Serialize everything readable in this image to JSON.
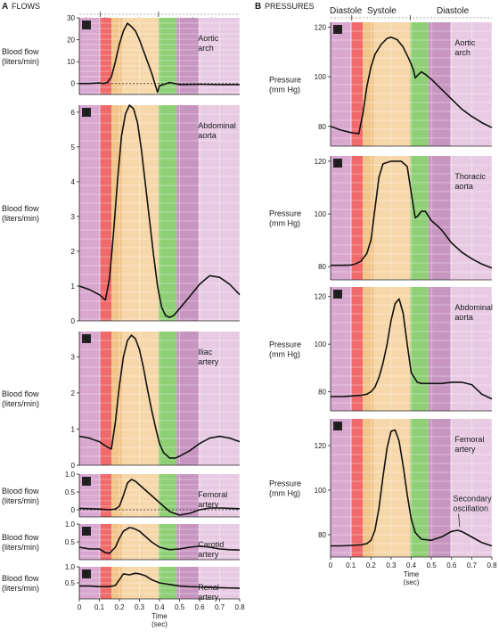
{
  "colors": {
    "phase_bands": [
      "#d9a8d1",
      "#ef6a6a",
      "#f1c48a",
      "#f6d7a9",
      "#8fcf75",
      "#c796c0",
      "#e8cbe3"
    ],
    "curve": "#111111",
    "grid": "#ffffff"
  },
  "panel_headers": {
    "flows": {
      "letter": "A",
      "title": "FLOWS"
    },
    "pressures": {
      "letter": "B",
      "title": "PRESSURES"
    }
  },
  "phase_labels": {
    "diastole_left": "Diastole",
    "systole": "Systole",
    "diastole_right": "Diastole"
  },
  "chart_data": [
    {
      "type": "line",
      "column": "flows",
      "number": "1",
      "label": "Aortic arch",
      "ylabel": "Blood flow (liters/min)",
      "xlim": [
        0,
        0.8
      ],
      "ylim": [
        -5,
        30
      ],
      "yticks": [
        0,
        10,
        20,
        30
      ],
      "zero_dashed": true,
      "series": [
        {
          "x": [
            0,
            0.05,
            0.1,
            0.12,
            0.14,
            0.16,
            0.18,
            0.2,
            0.22,
            0.24,
            0.26,
            0.28,
            0.3,
            0.32,
            0.34,
            0.36,
            0.38,
            0.39,
            0.4,
            0.42,
            0.45,
            0.5,
            0.6,
            0.7,
            0.8
          ],
          "y": [
            0,
            0,
            0.3,
            0,
            0.5,
            3,
            10,
            18,
            24,
            27.5,
            26,
            24,
            20,
            15,
            10,
            5,
            -1,
            -4,
            -1,
            -0.5,
            0.5,
            -0.5,
            -0.3,
            -0.5,
            -0.5
          ]
        }
      ]
    },
    {
      "type": "line",
      "column": "flows",
      "number": "2",
      "label": "Abdominal aorta",
      "ylabel": "Blood flow (liters/min)",
      "xlim": [
        0,
        0.8
      ],
      "ylim": [
        0,
        6.2
      ],
      "yticks": [
        0,
        1,
        2,
        3,
        4,
        5,
        6
      ],
      "series": [
        {
          "x": [
            0,
            0.05,
            0.1,
            0.13,
            0.15,
            0.17,
            0.19,
            0.21,
            0.23,
            0.25,
            0.27,
            0.29,
            0.31,
            0.33,
            0.35,
            0.37,
            0.39,
            0.41,
            0.43,
            0.45,
            0.47,
            0.5,
            0.55,
            0.6,
            0.65,
            0.7,
            0.75,
            0.8
          ],
          "y": [
            1.0,
            0.9,
            0.75,
            0.6,
            1.2,
            2.5,
            4.0,
            5.3,
            5.95,
            6.2,
            6.1,
            5.7,
            4.9,
            3.9,
            2.9,
            1.9,
            1.0,
            0.4,
            0.15,
            0.1,
            0.15,
            0.35,
            0.7,
            1.05,
            1.3,
            1.25,
            1.05,
            0.75
          ]
        }
      ]
    },
    {
      "type": "line",
      "column": "flows",
      "number": "3",
      "label": "Iliac artery",
      "ylabel": "Blood flow (liters/min)",
      "xlim": [
        0,
        0.8
      ],
      "ylim": [
        0,
        3.7
      ],
      "yticks": [
        0,
        1,
        2,
        3
      ],
      "series": [
        {
          "x": [
            0,
            0.05,
            0.1,
            0.14,
            0.16,
            0.18,
            0.2,
            0.22,
            0.24,
            0.26,
            0.28,
            0.3,
            0.32,
            0.34,
            0.36,
            0.38,
            0.4,
            0.42,
            0.45,
            0.48,
            0.5,
            0.55,
            0.6,
            0.65,
            0.7,
            0.75,
            0.8
          ],
          "y": [
            0.8,
            0.75,
            0.65,
            0.5,
            0.45,
            1.2,
            2.2,
            3.0,
            3.45,
            3.6,
            3.5,
            3.2,
            2.7,
            2.1,
            1.55,
            1.05,
            0.6,
            0.35,
            0.2,
            0.2,
            0.25,
            0.4,
            0.6,
            0.75,
            0.8,
            0.75,
            0.65
          ]
        }
      ]
    },
    {
      "type": "line",
      "column": "flows",
      "number": "4",
      "label": "Femoral artery",
      "ylabel": "Blood flow (liters/min)",
      "xlim": [
        0,
        0.8
      ],
      "ylim": [
        -0.2,
        1.0
      ],
      "yticks": [
        0,
        0.5,
        1.0
      ],
      "ytick_labels": [
        "0",
        "0.5",
        "1.0"
      ],
      "zero_dashed": true,
      "series": [
        {
          "x": [
            0,
            0.05,
            0.1,
            0.15,
            0.18,
            0.2,
            0.22,
            0.24,
            0.26,
            0.28,
            0.3,
            0.32,
            0.35,
            0.4,
            0.45,
            0.5,
            0.55,
            0.6,
            0.65,
            0.7,
            0.75,
            0.8
          ],
          "y": [
            0.04,
            0.03,
            0.02,
            0.0,
            0.02,
            0.1,
            0.4,
            0.75,
            0.85,
            0.8,
            0.7,
            0.6,
            0.45,
            0.2,
            -0.05,
            -0.15,
            -0.1,
            0.0,
            0.05,
            0.05,
            0.04,
            0.03
          ]
        }
      ]
    },
    {
      "type": "line",
      "column": "flows",
      "number": "5",
      "label": "Carotid artery",
      "ylabel": "Blood flow (liters/min)",
      "xlim": [
        0,
        0.8
      ],
      "ylim": [
        0,
        1.0
      ],
      "yticks": [
        0.5,
        1.0
      ],
      "ytick_labels": [
        "0.5",
        "1.0"
      ],
      "series": [
        {
          "x": [
            0,
            0.05,
            0.1,
            0.13,
            0.15,
            0.18,
            0.2,
            0.22,
            0.25,
            0.27,
            0.3,
            0.33,
            0.36,
            0.4,
            0.45,
            0.5,
            0.55,
            0.6,
            0.65,
            0.7,
            0.75,
            0.8
          ],
          "y": [
            0.35,
            0.3,
            0.3,
            0.2,
            0.18,
            0.35,
            0.6,
            0.8,
            0.9,
            0.88,
            0.8,
            0.65,
            0.5,
            0.35,
            0.28,
            0.3,
            0.35,
            0.38,
            0.35,
            0.3,
            0.28,
            0.27
          ]
        }
      ]
    },
    {
      "type": "line",
      "column": "flows",
      "number": "6",
      "label": "Renal artery",
      "ylabel": "Blood flow (liters/min)",
      "xlim": [
        0,
        0.8
      ],
      "ylim": [
        0,
        1.0
      ],
      "yticks": [
        0.5,
        1.0
      ],
      "ytick_labels": [
        "0.5",
        "1.0"
      ],
      "xticks": [
        0,
        0.1,
        0.2,
        0.3,
        0.4,
        0.5,
        0.6,
        0.7,
        0.8
      ],
      "xlabel": "Time (sec)",
      "series": [
        {
          "x": [
            0,
            0.05,
            0.1,
            0.15,
            0.18,
            0.2,
            0.22,
            0.25,
            0.28,
            0.3,
            0.33,
            0.36,
            0.4,
            0.45,
            0.5,
            0.55,
            0.6,
            0.7,
            0.8
          ],
          "y": [
            0.4,
            0.4,
            0.38,
            0.38,
            0.42,
            0.6,
            0.78,
            0.75,
            0.8,
            0.78,
            0.72,
            0.6,
            0.5,
            0.45,
            0.4,
            0.38,
            0.37,
            0.35,
            0.33
          ]
        }
      ]
    },
    {
      "type": "line",
      "column": "pressures",
      "number": "1",
      "label": "Aortic arch",
      "ylabel": "Pressure (mm Hg)",
      "xlim": [
        0,
        0.8
      ],
      "ylim": [
        72,
        122
      ],
      "yticks": [
        80,
        100,
        120
      ],
      "series": [
        {
          "x": [
            0,
            0.05,
            0.1,
            0.14,
            0.16,
            0.18,
            0.2,
            0.22,
            0.25,
            0.28,
            0.3,
            0.33,
            0.36,
            0.39,
            0.41,
            0.42,
            0.43,
            0.45,
            0.47,
            0.5,
            0.55,
            0.6,
            0.65,
            0.7,
            0.75,
            0.8
          ],
          "y": [
            80,
            78.5,
            77.5,
            77,
            85,
            96,
            104,
            109,
            113,
            115.5,
            116,
            115,
            112,
            107,
            103,
            99.5,
            100.5,
            102,
            101,
            99,
            95,
            91,
            87,
            84,
            81.5,
            79.5
          ]
        }
      ]
    },
    {
      "type": "line",
      "column": "pressures",
      "number": "2",
      "label": "Thoracic aorta",
      "ylabel": "Pressure (mm Hg)",
      "xlim": [
        0,
        0.8
      ],
      "ylim": [
        75,
        122
      ],
      "yticks": [
        80,
        100,
        120
      ],
      "series": [
        {
          "x": [
            0,
            0.05,
            0.1,
            0.12,
            0.15,
            0.18,
            0.2,
            0.22,
            0.24,
            0.26,
            0.3,
            0.35,
            0.38,
            0.4,
            0.42,
            0.43,
            0.45,
            0.47,
            0.5,
            0.53,
            0.55,
            0.6,
            0.65,
            0.7,
            0.75,
            0.8
          ],
          "y": [
            80.5,
            80.5,
            80.6,
            81,
            82,
            85,
            90,
            102,
            114,
            119,
            120,
            120,
            118,
            108,
            98.5,
            99,
            101,
            101,
            97.5,
            95.5,
            94,
            89,
            85.5,
            83,
            81,
            79.5
          ]
        }
      ]
    },
    {
      "type": "line",
      "column": "pressures",
      "number": "3",
      "label": "Abdominal aorta",
      "ylabel": "Pressure (mm Hg)",
      "xlim": [
        0,
        0.8
      ],
      "ylim": [
        72,
        124
      ],
      "yticks": [
        80,
        100,
        120
      ],
      "series": [
        {
          "x": [
            0,
            0.05,
            0.1,
            0.15,
            0.18,
            0.2,
            0.22,
            0.24,
            0.26,
            0.28,
            0.3,
            0.32,
            0.34,
            0.36,
            0.38,
            0.4,
            0.43,
            0.45,
            0.5,
            0.55,
            0.6,
            0.65,
            0.7,
            0.75,
            0.8
          ],
          "y": [
            78,
            78,
            78.2,
            78.5,
            79,
            80,
            82,
            86,
            92,
            100,
            110,
            117,
            119,
            113,
            100,
            88,
            84,
            83.5,
            83.5,
            83.5,
            84,
            84,
            83,
            79,
            77
          ]
        }
      ]
    },
    {
      "type": "line",
      "column": "pressures",
      "number": "4",
      "label": "Femoral artery",
      "ylabel": "Pressure (mm Hg)",
      "annotation": "Secondary oscillation",
      "xlim": [
        0,
        0.8
      ],
      "ylim": [
        70,
        132
      ],
      "yticks": [
        80,
        100,
        120
      ],
      "xticks": [
        0,
        0.1,
        0.2,
        0.3,
        0.4,
        0.5,
        0.6,
        0.7,
        0.8
      ],
      "xlabel": "Time (sec)",
      "series": [
        {
          "x": [
            0,
            0.05,
            0.1,
            0.15,
            0.18,
            0.2,
            0.22,
            0.24,
            0.26,
            0.28,
            0.3,
            0.32,
            0.34,
            0.36,
            0.38,
            0.4,
            0.42,
            0.45,
            0.5,
            0.55,
            0.6,
            0.63,
            0.65,
            0.7,
            0.75,
            0.8
          ],
          "y": [
            75,
            75,
            75.2,
            75.5,
            76,
            77.5,
            82,
            92,
            106,
            119,
            126.5,
            127,
            122,
            111,
            98,
            87,
            81,
            78,
            77.5,
            79,
            81.5,
            82,
            81.5,
            79,
            76.5,
            75
          ]
        }
      ]
    }
  ]
}
